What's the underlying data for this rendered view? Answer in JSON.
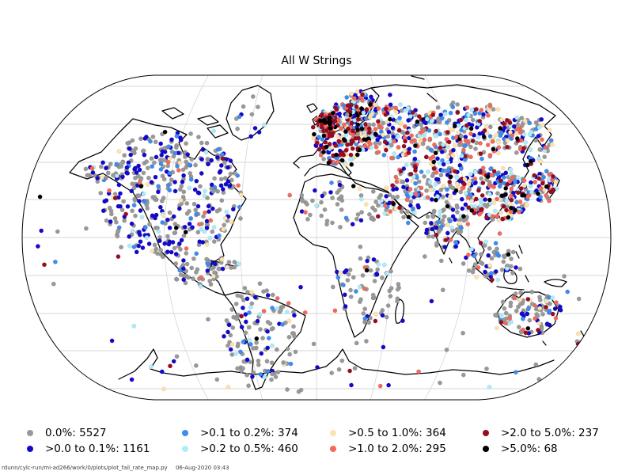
{
  "figure": {
    "background": "#ffffff"
  },
  "title": "All W Strings",
  "footer": {
    "script_path": "rdunn/cylc-run/mi-ad266/work/0/plots/plot_fail_rate_map.py",
    "generated": "06-Aug-2020 03:43"
  },
  "chart_data": {
    "type": "scatter",
    "subtype": "station-fail-rate-world-map",
    "projection": "Robinson",
    "title": "All W Strings",
    "legend_position": "bottom",
    "legend_columns": 4,
    "gridlines": true,
    "gridline_color": "#c9c9c9",
    "coastline_color": "#000000",
    "outline_color": "#000000",
    "categories": [
      {
        "label": "0.0%: 5527",
        "range": "0.0%",
        "count": 5527,
        "color": "#999999"
      },
      {
        "label": ">0.0 to 0.1%: 1161",
        "range": ">0.0 to 0.1%",
        "count": 1161,
        "color": "#1408cf"
      },
      {
        "label": ">0.1 to 0.2%: 374",
        "range": ">0.1 to 0.2%",
        "count": 374,
        "color": "#3b8df2"
      },
      {
        "label": ">0.2 to 0.5%: 460",
        "range": ">0.2 to 0.5%",
        "count": 460,
        "color": "#aeecfb"
      },
      {
        "label": ">0.5 to 1.0%: 364",
        "range": ">0.5 to 1.0%",
        "count": 364,
        "color": "#ffe3ae"
      },
      {
        "label": ">1.0 to 2.0%: 295",
        "range": ">1.0 to 2.0%",
        "count": 295,
        "color": "#f4695c"
      },
      {
        "label": ">2.0 to 5.0%: 237",
        "range": ">2.0 to 5.0%",
        "count": 237,
        "color": "#9a0b20"
      },
      {
        "label": ">5.0%: 68",
        "range": ">5.0%",
        "count": 68,
        "color": "#000000"
      }
    ]
  }
}
